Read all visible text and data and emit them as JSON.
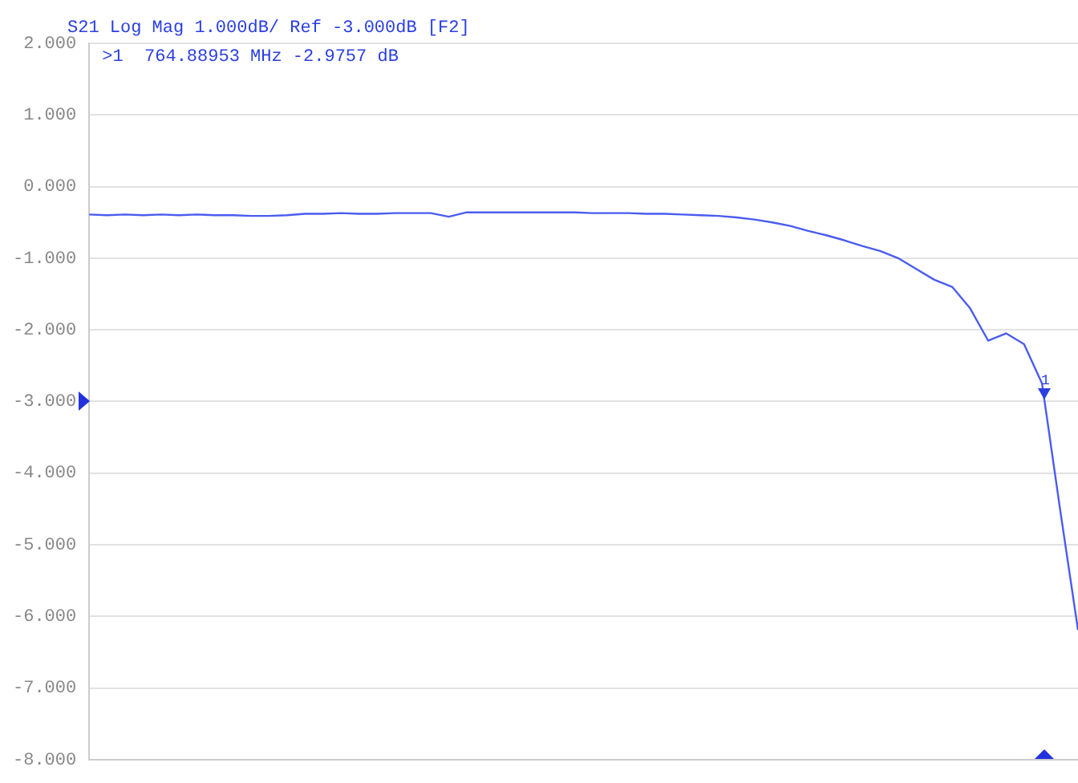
{
  "chart_data": {
    "type": "line",
    "title": "S21 Log Mag 1.000dB/ Ref -3.000dB [F2]",
    "categories": [
      null,
      null,
      null,
      null,
      null,
      null,
      null,
      null,
      null,
      null,
      null,
      null,
      null,
      null,
      null,
      null,
      null,
      null,
      null,
      null,
      null,
      null,
      null,
      null,
      null,
      null,
      null,
      null,
      null,
      null,
      null,
      null,
      null,
      null,
      null,
      null,
      null,
      null,
      null,
      null,
      null,
      null,
      null,
      null,
      null,
      null,
      null,
      null,
      null,
      null,
      null,
      null,
      null,
      null,
      null,
      null
    ],
    "series": [
      {
        "color": "#4a5cf0",
        "values": [
          -0.39,
          -0.4,
          -0.39,
          -0.4,
          -0.39,
          -0.4,
          -0.39,
          -0.4,
          -0.4,
          -0.41,
          -0.41,
          -0.4,
          -0.38,
          -0.38,
          -0.37,
          -0.38,
          -0.38,
          -0.37,
          -0.37,
          -0.37,
          -0.42,
          -0.36,
          -0.36,
          -0.36,
          -0.36,
          -0.36,
          -0.36,
          -0.36,
          -0.37,
          -0.37,
          -0.37,
          -0.38,
          -0.38,
          -0.39,
          -0.4,
          -0.41,
          -0.43,
          -0.46,
          -0.5,
          -0.55,
          -0.62,
          -0.68,
          -0.75,
          -0.83,
          -0.9,
          -1.0,
          -1.15,
          -1.3,
          -1.4,
          -1.7,
          -2.15,
          -2.05,
          -2.2,
          -2.75,
          -4.5,
          -6.19
        ]
      }
    ],
    "ylim": [
      -8,
      2
    ],
    "yticks": [
      {
        "value": 2,
        "label": "2.000"
      },
      {
        "value": 1,
        "label": "1.000"
      },
      {
        "value": 0,
        "label": "0.000"
      },
      {
        "value": -1,
        "label": "-1.000"
      },
      {
        "value": -2,
        "label": "-2.000"
      },
      {
        "value": -3,
        "label": "-3.000"
      },
      {
        "value": -4,
        "label": "-4.000"
      },
      {
        "value": -5,
        "label": "-5.000"
      },
      {
        "value": -6,
        "label": "-6.000"
      },
      {
        "value": -7,
        "label": "-7.000"
      },
      {
        "value": -8,
        "label": "-8.000"
      }
    ],
    "annotations": [
      ">1  764.88953 MHz -2.9757 dB",
      {
        "text": "1",
        "y": -2.9757
      }
    ],
    "grid": "y",
    "legend": false,
    "marker": "none",
    "line_style": "solid",
    "tick_labels": "y"
  }
}
